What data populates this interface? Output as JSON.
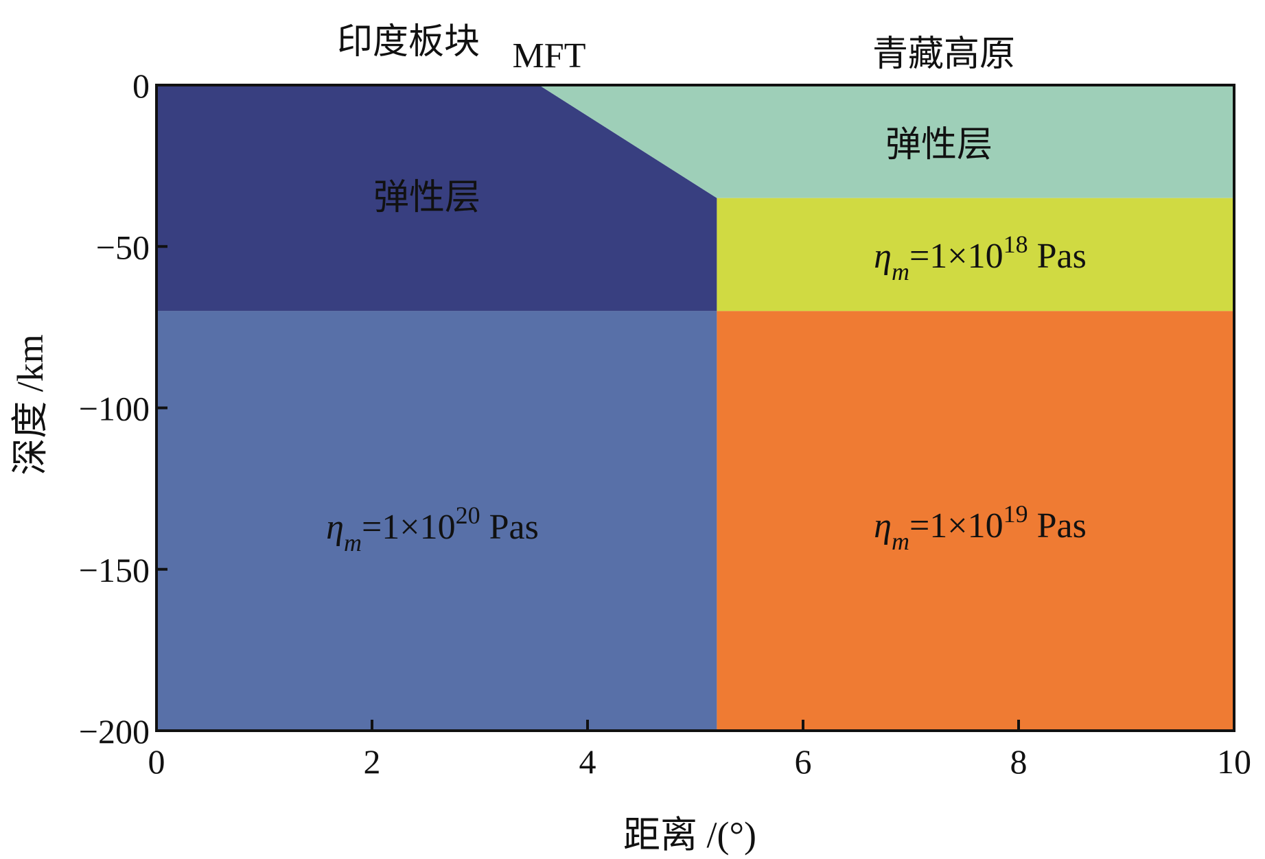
{
  "top_labels": {
    "indian_plate": "印度板块",
    "mft": "MFT",
    "tibet": "青藏高原"
  },
  "axes": {
    "xlabel": "距离 /(°)",
    "ylabel": "深度 /km",
    "xlim": [
      0,
      10
    ],
    "ylim": [
      -200,
      0
    ],
    "x_ticks": [
      "0",
      "2",
      "4",
      "6",
      "8",
      "10"
    ],
    "y_ticks": [
      "0",
      "−50",
      "−100",
      "−150",
      "−200"
    ]
  },
  "regions": {
    "india_elastic": {
      "label": "弹性层",
      "color": "#383f80"
    },
    "india_mantle": {
      "label_base": "η",
      "label_sub": "m",
      "label_mid": "=1×10",
      "label_exp": "20",
      "label_unit": " Pas",
      "color": "#5870a8"
    },
    "tibet_elastic": {
      "label": "弹性层",
      "color": "#9ecfb8"
    },
    "tibet_lower_crust": {
      "label_base": "η",
      "label_sub": "m",
      "label_mid": "=1×10",
      "label_exp": "18",
      "label_unit": " Pas",
      "color": "#d0da42"
    },
    "tibet_mantle": {
      "label_base": "η",
      "label_sub": "m",
      "label_mid": "=1×10",
      "label_exp": "19",
      "label_unit": " Pas",
      "color": "#ef7b33"
    }
  },
  "chart_data": {
    "type": "diagram",
    "xlim": [
      0,
      10
    ],
    "ylim": [
      -200,
      0
    ],
    "boundaries": {
      "mft_x": 3.55,
      "plate_boundary_x": 5.2,
      "tibet_elastic_bottom_depth": -35,
      "lithosphere_bottom_depth": -70
    }
  }
}
